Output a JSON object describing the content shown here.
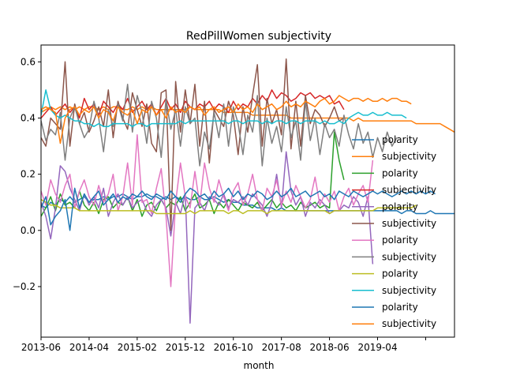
{
  "chart_data": {
    "type": "line",
    "title": "RedPillWomen subjectivity",
    "xlabel": "month",
    "ylabel": "",
    "x_tick_labels": [
      "2013-06",
      "2014-04",
      "2015-02",
      "2015-12",
      "2016-10",
      "2017-08",
      "2018-06",
      "2019-04",
      ""
    ],
    "y_ticks": [
      -0.2,
      0.0,
      0.2,
      0.4,
      0.6
    ],
    "y_tick_labels": [
      "−0.2",
      "0.0",
      "0.2",
      "0.4",
      "0.6"
    ],
    "xlim": [
      0,
      86
    ],
    "ylim": [
      -0.38,
      0.66
    ],
    "grid": false,
    "legend_position": "lower right",
    "series": [
      {
        "name": "polarity",
        "color": "#1f77b4",
        "x0": 0,
        "values": [
          0.09,
          0.08,
          0.1,
          0.09,
          0.11,
          0.1,
          0.12,
          0.1,
          0.11,
          0.12,
          0.1,
          0.11,
          0.11,
          0.12,
          0.11,
          0.12,
          0.12,
          0.13,
          0.12,
          0.11,
          0.12,
          0.12,
          0.13,
          0.12,
          0.12,
          0.11,
          0.12,
          0.11,
          0.12,
          0.11,
          0.12,
          0.11,
          0.11,
          0.12,
          0.11,
          0.11,
          0.12,
          0.11,
          0.1,
          0.11,
          0.1,
          0.1,
          0.09,
          0.09,
          0.09,
          0.08,
          0.08,
          0.08,
          0.08,
          0.07,
          0.08,
          0.07,
          0.07,
          0.07,
          0.07,
          0.07,
          0.07,
          0.07,
          0.07,
          0.07,
          0.07,
          0.07,
          0.07,
          0.07,
          0.07,
          0.07,
          0.07,
          0.07,
          0.07,
          0.07,
          0.07,
          0.07,
          0.07,
          0.07,
          0.07,
          0.06,
          0.07,
          0.07,
          0.06,
          0.06,
          0.06,
          0.07,
          0.06,
          0.06,
          0.06,
          0.06,
          0.06
        ]
      },
      {
        "name": "subjectivity",
        "color": "#ff7f0e",
        "x0": 0,
        "values": [
          0.42,
          0.43,
          0.44,
          0.43,
          0.44,
          0.43,
          0.44,
          0.43,
          0.44,
          0.43,
          0.44,
          0.44,
          0.43,
          0.44,
          0.43,
          0.44,
          0.44,
          0.43,
          0.43,
          0.44,
          0.43,
          0.44,
          0.43,
          0.44,
          0.43,
          0.43,
          0.43,
          0.43,
          0.43,
          0.43,
          0.43,
          0.44,
          0.43,
          0.43,
          0.43,
          0.43,
          0.43,
          0.43,
          0.42,
          0.42,
          0.42,
          0.42,
          0.42,
          0.42,
          0.41,
          0.41,
          0.41,
          0.41,
          0.41,
          0.41,
          0.41,
          0.41,
          0.4,
          0.4,
          0.4,
          0.4,
          0.4,
          0.4,
          0.4,
          0.4,
          0.4,
          0.4,
          0.4,
          0.4,
          0.4,
          0.39,
          0.4,
          0.39,
          0.39,
          0.39,
          0.39,
          0.39,
          0.39,
          0.39,
          0.39,
          0.39,
          0.39,
          0.39,
          0.38,
          0.38,
          0.38,
          0.38,
          0.38,
          0.38,
          0.37,
          0.36,
          0.35
        ]
      },
      {
        "name": "polarity",
        "color": "#2ca02c",
        "x0": 0,
        "values": [
          0.05,
          0.08,
          0.12,
          0.07,
          0.13,
          0.09,
          0.1,
          0.08,
          0.14,
          0.09,
          0.07,
          0.1,
          0.06,
          0.11,
          0.12,
          0.08,
          0.1,
          0.09,
          0.12,
          0.07,
          0.11,
          0.05,
          0.09,
          0.1,
          0.07,
          0.11,
          0.08,
          0.1,
          0.09,
          0.12,
          0.07,
          0.1,
          0.13,
          0.08,
          0.09,
          0.11,
          0.06,
          0.1,
          0.08,
          0.11,
          0.09,
          0.07,
          0.1,
          0.09,
          0.08,
          0.1,
          0.07,
          0.09,
          0.11,
          0.08,
          0.1,
          0.08,
          0.09,
          0.07,
          0.1,
          0.08,
          0.09,
          0.1,
          0.08,
          0.09,
          0.08,
          0.35,
          0.25,
          0.18
        ]
      },
      {
        "name": "subjectivity",
        "color": "#d62728",
        "x0": 0,
        "values": [
          0.4,
          0.42,
          0.44,
          0.41,
          0.43,
          0.45,
          0.42,
          0.44,
          0.4,
          0.47,
          0.43,
          0.45,
          0.41,
          0.46,
          0.44,
          0.42,
          0.45,
          0.43,
          0.47,
          0.42,
          0.44,
          0.46,
          0.43,
          0.45,
          0.41,
          0.44,
          0.47,
          0.43,
          0.45,
          0.42,
          0.46,
          0.44,
          0.43,
          0.45,
          0.44,
          0.46,
          0.43,
          0.45,
          0.44,
          0.42,
          0.46,
          0.43,
          0.45,
          0.44,
          0.47,
          0.45,
          0.48,
          0.46,
          0.5,
          0.47,
          0.49,
          0.48,
          0.46,
          0.47,
          0.49,
          0.48,
          0.49,
          0.47,
          0.48,
          0.47,
          0.48,
          0.45,
          0.46,
          0.43
        ]
      },
      {
        "name": "polarity",
        "color": "#9467bd",
        "x0": 0,
        "values": [
          0.1,
          0.05,
          -0.03,
          0.08,
          0.23,
          0.21,
          0.15,
          0.11,
          0.07,
          0.13,
          0.09,
          0.12,
          0.08,
          0.15,
          0.05,
          0.1,
          0.13,
          0.09,
          0.12,
          0.08,
          0.1,
          0.11,
          0.07,
          0.05,
          0.09,
          0.11,
          0.08,
          -0.02,
          0.1,
          0.06,
          0.13,
          -0.33,
          0.08,
          0.1,
          0.07,
          0.12,
          0.11,
          0.09,
          0.13,
          0.08,
          0.11,
          0.1,
          0.12,
          0.09,
          0.13,
          0.11,
          0.09,
          0.05,
          0.1,
          0.2,
          0.08,
          0.28,
          0.14,
          0.09,
          0.12,
          0.05,
          0.1,
          0.08,
          0.11,
          0.09,
          0.06,
          0.07,
          0.07,
          0.09,
          0.08,
          0.12,
          0.1,
          0.05,
          0.12,
          -0.12
        ]
      },
      {
        "name": "subjectivity",
        "color": "#8c564b",
        "x0": 0,
        "values": [
          0.33,
          0.3,
          0.4,
          0.38,
          0.36,
          0.6,
          0.3,
          0.45,
          0.38,
          0.42,
          0.35,
          0.39,
          0.44,
          0.37,
          0.5,
          0.33,
          0.46,
          0.4,
          0.36,
          0.49,
          0.43,
          0.37,
          0.45,
          0.31,
          0.28,
          0.49,
          0.5,
          0.0,
          0.53,
          0.35,
          0.5,
          0.38,
          0.52,
          0.3,
          0.46,
          0.24,
          0.43,
          0.4,
          0.37,
          0.46,
          0.41,
          0.27,
          0.44,
          0.35,
          0.48,
          0.59,
          0.3,
          0.47,
          0.38,
          0.43,
          0.34,
          0.61,
          0.29,
          0.46,
          0.3,
          0.48,
          0.38,
          0.43,
          0.41,
          0.37,
          0.4,
          0.44,
          0.39,
          0.4
        ]
      },
      {
        "name": "polarity",
        "color": "#e377c2",
        "x0": 0,
        "values": [
          0.14,
          0.09,
          0.18,
          0.13,
          0.1,
          0.16,
          0.2,
          0.08,
          0.14,
          0.18,
          0.12,
          0.09,
          0.16,
          0.1,
          0.13,
          0.2,
          0.07,
          0.12,
          0.24,
          0.09,
          0.34,
          0.1,
          0.11,
          0.06,
          0.15,
          0.22,
          0.05,
          -0.2,
          0.1,
          0.24,
          0.12,
          0.08,
          0.21,
          0.09,
          0.24,
          0.15,
          0.1,
          0.18,
          0.12,
          0.07,
          0.14,
          0.17,
          0.09,
          0.13,
          0.2,
          0.11,
          0.07,
          0.15,
          0.12,
          0.18,
          0.09,
          0.14,
          0.1,
          0.16,
          0.12,
          0.08,
          0.11,
          0.19,
          0.09,
          0.13,
          0.1,
          0.14,
          0.07,
          0.12,
          0.15,
          0.09,
          0.13,
          0.16,
          0.1,
          0.25
        ]
      },
      {
        "name": "subjectivity",
        "color": "#7f7f7f",
        "x0": 0,
        "values": [
          0.39,
          0.32,
          0.36,
          0.34,
          0.42,
          0.25,
          0.4,
          0.44,
          0.38,
          0.33,
          0.36,
          0.46,
          0.4,
          0.28,
          0.43,
          0.37,
          0.45,
          0.39,
          0.52,
          0.35,
          0.48,
          0.42,
          0.31,
          0.46,
          0.4,
          0.26,
          0.47,
          0.36,
          0.43,
          0.3,
          0.44,
          0.38,
          0.4,
          0.23,
          0.35,
          0.29,
          0.42,
          0.33,
          0.45,
          0.3,
          0.44,
          0.38,
          0.27,
          0.41,
          0.35,
          0.48,
          0.23,
          0.4,
          0.31,
          0.37,
          0.28,
          0.44,
          0.33,
          0.39,
          0.25,
          0.46,
          0.32,
          0.4,
          0.27,
          0.38,
          0.33,
          0.36,
          0.3,
          0.41,
          0.34,
          0.29,
          0.38,
          0.31,
          0.35,
          0.26,
          0.33,
          0.28,
          0.35,
          0.3,
          0.33
        ]
      },
      {
        "name": "polarity",
        "color": "#bcbd22",
        "x0": 0,
        "values": [
          0.11,
          0.1,
          0.09,
          0.09,
          0.08,
          0.08,
          0.08,
          0.08,
          0.07,
          0.07,
          0.07,
          0.07,
          0.07,
          0.07,
          0.07,
          0.07,
          0.07,
          0.07,
          0.07,
          0.07,
          0.07,
          0.07,
          0.07,
          0.07,
          0.06,
          0.06,
          0.06,
          0.06,
          0.06,
          0.06,
          0.06,
          0.07,
          0.06,
          0.07,
          0.07,
          0.07,
          0.07,
          0.07,
          0.07,
          0.06,
          0.07,
          0.07,
          0.06,
          0.07,
          0.07,
          0.07,
          0.07,
          0.06,
          0.07,
          0.07,
          0.07,
          0.07,
          0.07,
          0.07,
          0.07,
          0.07,
          0.07,
          0.07,
          0.07,
          0.07,
          0.06,
          0.07,
          0.07,
          0.07,
          0.07,
          0.07,
          0.07,
          0.07,
          0.07,
          0.07,
          0.08,
          0.08,
          0.08,
          0.08,
          0.08,
          0.08,
          0.08,
          0.08,
          0.09
        ]
      },
      {
        "name": "subjectivity",
        "color": "#17becf",
        "x0": 0,
        "values": [
          0.41,
          0.5,
          0.43,
          0.41,
          0.4,
          0.41,
          0.4,
          0.39,
          0.39,
          0.38,
          0.38,
          0.37,
          0.38,
          0.37,
          0.37,
          0.38,
          0.38,
          0.38,
          0.38,
          0.37,
          0.38,
          0.38,
          0.37,
          0.38,
          0.38,
          0.38,
          0.38,
          0.38,
          0.38,
          0.39,
          0.38,
          0.39,
          0.39,
          0.39,
          0.39,
          0.39,
          0.39,
          0.39,
          0.39,
          0.38,
          0.39,
          0.39,
          0.38,
          0.39,
          0.39,
          0.39,
          0.38,
          0.39,
          0.38,
          0.39,
          0.39,
          0.38,
          0.39,
          0.39,
          0.38,
          0.39,
          0.39,
          0.39,
          0.38,
          0.39,
          0.38,
          0.38,
          0.39,
          0.38,
          0.4,
          0.41,
          0.42,
          0.41,
          0.41,
          0.42,
          0.41,
          0.41,
          0.42,
          0.41,
          0.41,
          0.41,
          0.4
        ]
      },
      {
        "name": "polarity",
        "color": "#1f77b4",
        "x0": 0,
        "values": [
          0.08,
          0.12,
          0.02,
          0.05,
          0.07,
          0.11,
          0.0,
          0.15,
          0.08,
          0.13,
          0.1,
          0.12,
          0.14,
          0.09,
          0.11,
          0.13,
          0.1,
          0.12,
          0.11,
          0.13,
          0.12,
          0.14,
          0.12,
          0.11,
          0.13,
          0.12,
          0.11,
          0.14,
          0.12,
          0.1,
          0.13,
          0.15,
          0.14,
          0.12,
          0.13,
          0.11,
          0.14,
          0.12,
          0.13,
          0.15,
          0.12,
          0.14,
          0.11,
          0.13,
          0.12,
          0.14,
          0.13,
          0.11,
          0.12,
          0.14,
          0.12,
          0.13,
          0.15,
          0.12,
          0.13,
          0.14,
          0.12,
          0.13,
          0.14,
          0.12,
          0.13,
          0.11,
          0.14,
          0.13,
          0.12,
          0.14,
          0.13,
          0.12,
          0.13,
          0.14,
          0.13,
          0.14,
          0.13,
          0.12,
          0.13,
          0.14,
          0.13,
          0.14,
          0.13,
          0.14,
          0.13,
          0.14,
          0.13
        ]
      },
      {
        "name": "subjectivity",
        "color": "#ff7f0e",
        "x0": 0,
        "values": [
          0.43,
          0.44,
          0.43,
          0.42,
          0.31,
          0.4,
          0.43,
          0.44,
          0.41,
          0.43,
          0.42,
          0.44,
          0.4,
          0.43,
          0.42,
          0.39,
          0.44,
          0.42,
          0.41,
          0.43,
          0.38,
          0.43,
          0.42,
          0.44,
          0.41,
          0.43,
          0.4,
          0.44,
          0.42,
          0.43,
          0.42,
          0.44,
          0.43,
          0.44,
          0.41,
          0.43,
          0.44,
          0.42,
          0.43,
          0.44,
          0.42,
          0.45,
          0.43,
          0.44,
          0.42,
          0.45,
          0.43,
          0.44,
          0.45,
          0.43,
          0.44,
          0.46,
          0.44,
          0.45,
          0.44,
          0.46,
          0.45,
          0.44,
          0.46,
          0.47,
          0.45,
          0.46,
          0.48,
          0.47,
          0.46,
          0.47,
          0.47,
          0.46,
          0.47,
          0.46,
          0.46,
          0.47,
          0.46,
          0.47,
          0.47,
          0.46,
          0.46,
          0.45
        ]
      }
    ]
  }
}
